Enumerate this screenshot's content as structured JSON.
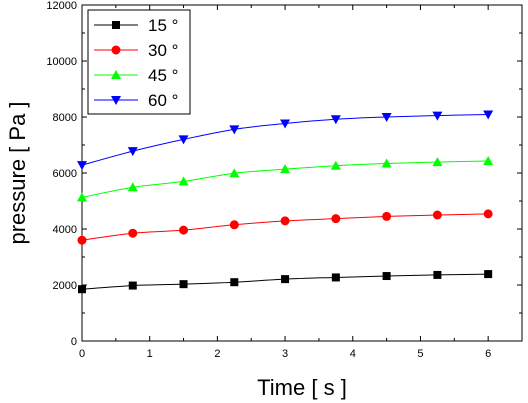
{
  "chart_data": {
    "type": "line",
    "title": "",
    "xlabel": "Time [ s ]",
    "ylabel": "pressure [ Pa ]",
    "xlim": [
      0,
      6.5
    ],
    "ylim": [
      0,
      12000
    ],
    "xticks": [
      0,
      1,
      2,
      3,
      4,
      5,
      6
    ],
    "yticks": [
      0,
      2000,
      4000,
      6000,
      8000,
      10000,
      12000
    ],
    "grid": false,
    "legend_position": "top-left",
    "x": [
      0,
      0.75,
      1.5,
      2.25,
      3,
      3.75,
      4.5,
      5.25,
      6
    ],
    "series": [
      {
        "name": "15 °",
        "color": "#000000",
        "marker": "square",
        "values": [
          1850,
          1980,
          2030,
          2100,
          2210,
          2270,
          2320,
          2360,
          2390
        ]
      },
      {
        "name": "30 °",
        "color": "#ff0000",
        "marker": "circle",
        "values": [
          3600,
          3850,
          3960,
          4150,
          4290,
          4370,
          4450,
          4500,
          4540
        ]
      },
      {
        "name": "45 °",
        "color": "#00ff00",
        "marker": "triangle-up",
        "values": [
          5130,
          5490,
          5700,
          5990,
          6140,
          6260,
          6340,
          6390,
          6430
        ]
      },
      {
        "name": "60 °",
        "color": "#0000ff",
        "marker": "triangle-down",
        "values": [
          6280,
          6780,
          7200,
          7560,
          7770,
          7920,
          8000,
          8050,
          8090
        ]
      }
    ]
  }
}
